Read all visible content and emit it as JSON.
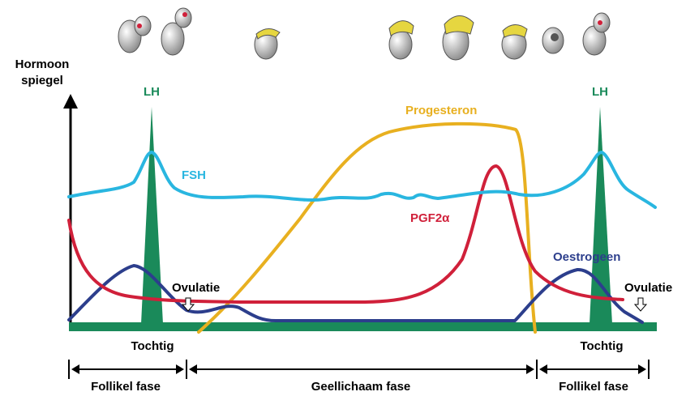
{
  "y_axis_label": {
    "line1": "Hormoon",
    "line2": "spiegel"
  },
  "curve_labels": {
    "lh_left": "LH",
    "lh_right": "LH",
    "fsh": "FSH",
    "progesterone": "Progesteron",
    "pgf2a": "PGF2α",
    "estrogen": "Oestrogeen"
  },
  "events": [
    "Ovulatie",
    "Ovulatie"
  ],
  "heat": [
    "Tochtig",
    "Tochtig"
  ],
  "phases": [
    "Follikel fase",
    "Geellichaam fase",
    "Follikel fase"
  ]
}
